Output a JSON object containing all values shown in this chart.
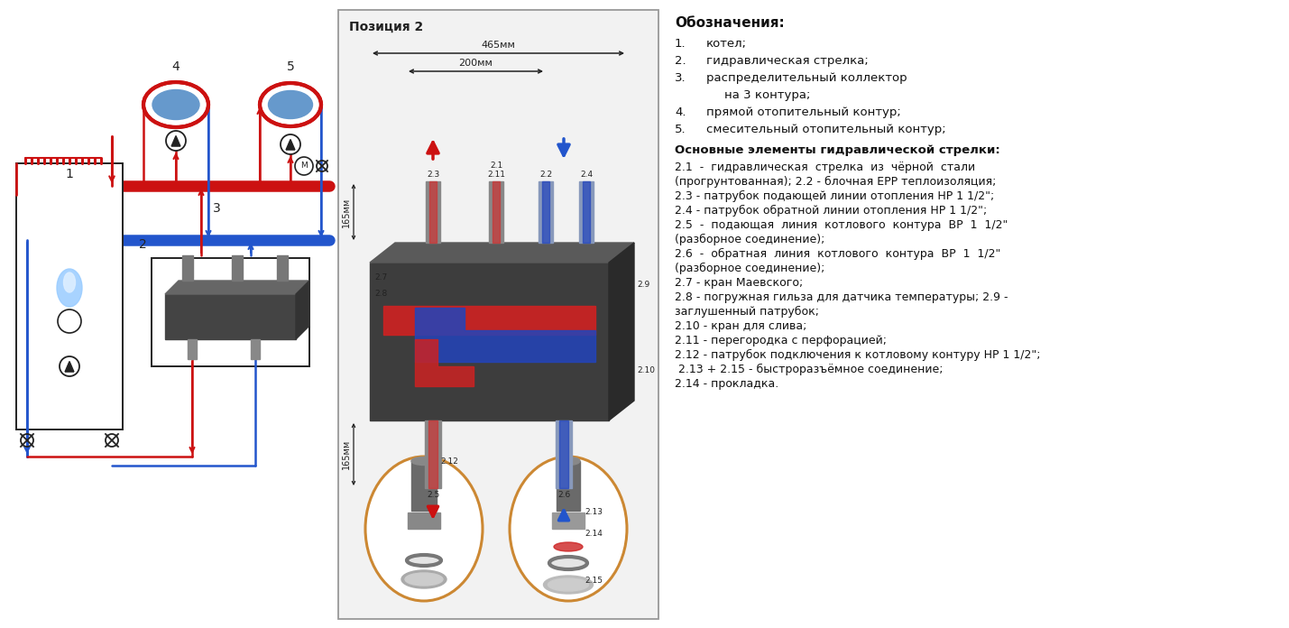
{
  "bg_color": "#ffffff",
  "right_panel": {
    "header": "Обозначения:",
    "items": [
      {
        "num": "1.",
        "indent": 35,
        "text": "котел;"
      },
      {
        "num": "2.",
        "indent": 35,
        "text": "гидравлическая стрелка;"
      },
      {
        "num": "3.",
        "indent": 35,
        "text": "распределительный коллектор"
      },
      {
        "num": "",
        "indent": 55,
        "text": "на 3 контура;"
      },
      {
        "num": "4.",
        "indent": 35,
        "text": "прямой отопительный контур;"
      },
      {
        "num": "5.",
        "indent": 35,
        "text": "смесительный отопительный контур;"
      }
    ],
    "section_header": "Основные элементы гидравлической стрелки:",
    "details": [
      "2.1  -  гидравлическая  стрелка  из  чёрной  стали",
      "(прогрунтованная); 2.2 - блочная ЕРР теплоизоляция;",
      "2.3 - патрубок подающей линии отопления НР 1 1/2\";",
      "2.4 - патрубок обратной линии отопления НР 1 1/2\";",
      "2.5  -  подающая  линия  котлового  контура  ВР  1  1/2\"",
      "(разборное соединение);",
      "2.6  -  обратная  линия  котлового  контура  ВР  1  1/2\"",
      "(разборное соединение);",
      "2.7 - кран Маевского;",
      "2.8 - погружная гильза для датчика температуры; 2.9 -",
      "заглушенный патрубок;",
      "2.10 - кран для слива;",
      "2.11 - перегородка с перфорацией;",
      "2.12 - патрубок подключения к котловому контуру НР 1 1/2\";",
      " 2.13 + 2.15 - быстроразъёмное соединение;",
      "2.14 - прокладка."
    ]
  },
  "colors": {
    "red": "#cc1111",
    "blue": "#2255cc",
    "dark_gray": "#222222",
    "mid_gray": "#666666",
    "light_gray": "#aaaaaa",
    "orange": "#cc8833"
  }
}
